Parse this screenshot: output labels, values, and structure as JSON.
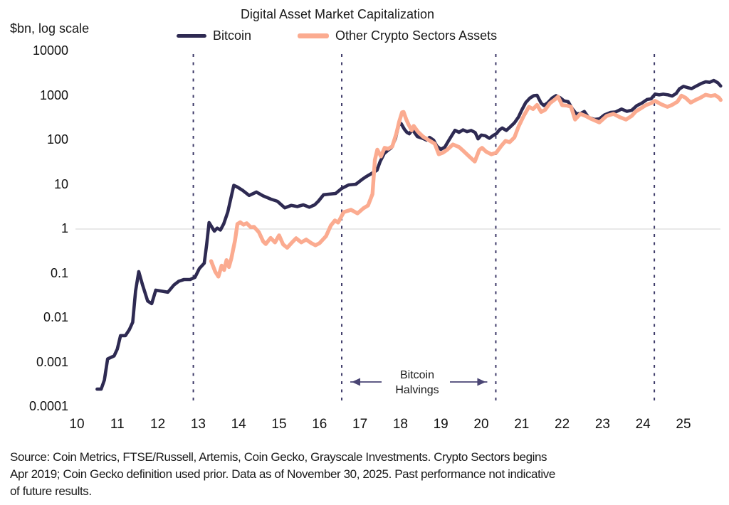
{
  "title": "Digital Asset Market Capitalization",
  "y_axis_unit": "$bn, log scale",
  "legend": [
    {
      "label": "Bitcoin",
      "color": "#2e2a52"
    },
    {
      "label": "Other Crypto Sectors Assets",
      "color": "#fbab90"
    }
  ],
  "annotation": {
    "line1": "Bitcoin",
    "line2": "Halvings"
  },
  "source": {
    "lines": [
      "Source: Coin Metrics, FTSE/Russell, Artemis, Coin Gecko, Grayscale Investments. Crypto Sectors begins",
      "Apr 2019; Coin Gecko definition used prior. Data as of November 30, 2025. Past performance not indicative",
      "of future results."
    ]
  },
  "colors": {
    "bitcoin_line": "#2e2a52",
    "other_crypto_line": "#fbab90",
    "halving_dashed_line": "#3d3a68",
    "arrow": "#4a4574",
    "gridline": "#d9d9d9",
    "text": "#1a1a1a"
  },
  "chart_data": {
    "type": "line",
    "title": "Digital Asset Market Capitalization",
    "xlabel": "",
    "ylabel": "$bn, log scale",
    "yscale": "log",
    "ylim": [
      0.0001,
      10000
    ],
    "xlim": [
      2010,
      2026
    ],
    "grid": "horizontal line at y=1 only",
    "legend_position": "top",
    "yticks": [
      10000,
      1000,
      100,
      10,
      1,
      0.1,
      0.01,
      0.001,
      0.0001
    ],
    "ytick_labels": [
      "10000",
      "1000",
      "100",
      "10",
      "1",
      "0.1",
      "0.01",
      "0.001",
      "0.0001"
    ],
    "xticks": [
      2010,
      2011,
      2012,
      2013,
      2014,
      2015,
      2016,
      2017,
      2018,
      2019,
      2020,
      2021,
      2022,
      2023,
      2024,
      2025
    ],
    "xtick_labels": [
      "10",
      "11",
      "12",
      "13",
      "14",
      "15",
      "16",
      "17",
      "18",
      "19",
      "20",
      "21",
      "22",
      "23",
      "24",
      "25"
    ],
    "halving_years": [
      2012.88,
      2016.55,
      2020.36,
      2024.28
    ],
    "grid_y_values": [
      1
    ],
    "series": [
      {
        "name": "Bitcoin",
        "color": "#2e2a52",
        "points": [
          [
            2010.5,
            0.00025
          ],
          [
            2010.6,
            0.00025
          ],
          [
            2010.68,
            0.0004
          ],
          [
            2010.76,
            0.0012
          ],
          [
            2010.92,
            0.0014
          ],
          [
            2011.0,
            0.002
          ],
          [
            2011.08,
            0.004
          ],
          [
            2011.2,
            0.004
          ],
          [
            2011.3,
            0.0055
          ],
          [
            2011.38,
            0.008
          ],
          [
            2011.45,
            0.04
          ],
          [
            2011.53,
            0.11
          ],
          [
            2011.62,
            0.057
          ],
          [
            2011.75,
            0.024
          ],
          [
            2011.85,
            0.021
          ],
          [
            2011.95,
            0.042
          ],
          [
            2012.1,
            0.04
          ],
          [
            2012.25,
            0.038
          ],
          [
            2012.4,
            0.055
          ],
          [
            2012.52,
            0.067
          ],
          [
            2012.65,
            0.073
          ],
          [
            2012.8,
            0.073
          ],
          [
            2012.92,
            0.082
          ],
          [
            2013.03,
            0.13
          ],
          [
            2013.15,
            0.17
          ],
          [
            2013.21,
            0.45
          ],
          [
            2013.27,
            1.4
          ],
          [
            2013.4,
            0.9
          ],
          [
            2013.47,
            1.05
          ],
          [
            2013.55,
            0.95
          ],
          [
            2013.63,
            1.3
          ],
          [
            2013.73,
            2.4
          ],
          [
            2013.88,
            9.6
          ],
          [
            2013.97,
            8.8
          ],
          [
            2014.1,
            7.4
          ],
          [
            2014.26,
            5.7
          ],
          [
            2014.44,
            6.8
          ],
          [
            2014.6,
            5.6
          ],
          [
            2014.8,
            4.7
          ],
          [
            2014.96,
            4.2
          ],
          [
            2015.14,
            3.0
          ],
          [
            2015.3,
            3.4
          ],
          [
            2015.45,
            3.2
          ],
          [
            2015.6,
            3.5
          ],
          [
            2015.75,
            3.1
          ],
          [
            2015.88,
            3.5
          ],
          [
            2015.97,
            4.2
          ],
          [
            2016.1,
            5.9
          ],
          [
            2016.25,
            6.1
          ],
          [
            2016.4,
            6.3
          ],
          [
            2016.55,
            8.2
          ],
          [
            2016.72,
            9.8
          ],
          [
            2016.9,
            10.2
          ],
          [
            2017.05,
            13
          ],
          [
            2017.15,
            15
          ],
          [
            2017.3,
            18
          ],
          [
            2017.42,
            21
          ],
          [
            2017.5,
            33
          ],
          [
            2017.6,
            50
          ],
          [
            2017.7,
            60
          ],
          [
            2017.78,
            68
          ],
          [
            2017.88,
            110
          ],
          [
            2017.96,
            220
          ],
          [
            2018.02,
            235
          ],
          [
            2018.1,
            175
          ],
          [
            2018.16,
            150
          ],
          [
            2018.22,
            139
          ],
          [
            2018.3,
            172
          ],
          [
            2018.42,
            120
          ],
          [
            2018.55,
            110
          ],
          [
            2018.65,
            100
          ],
          [
            2018.72,
            115
          ],
          [
            2018.82,
            100
          ],
          [
            2018.9,
            74
          ],
          [
            2019.0,
            62
          ],
          [
            2019.1,
            70
          ],
          [
            2019.2,
            100
          ],
          [
            2019.35,
            166
          ],
          [
            2019.45,
            150
          ],
          [
            2019.55,
            170
          ],
          [
            2019.65,
            155
          ],
          [
            2019.75,
            165
          ],
          [
            2019.85,
            148
          ],
          [
            2019.92,
            107
          ],
          [
            2020.0,
            130
          ],
          [
            2020.1,
            125
          ],
          [
            2020.2,
            110
          ],
          [
            2020.3,
            128
          ],
          [
            2020.37,
            139
          ],
          [
            2020.45,
            170
          ],
          [
            2020.52,
            187
          ],
          [
            2020.62,
            165
          ],
          [
            2020.72,
            200
          ],
          [
            2020.82,
            245
          ],
          [
            2020.92,
            330
          ],
          [
            2021.0,
            470
          ],
          [
            2021.1,
            700
          ],
          [
            2021.2,
            880
          ],
          [
            2021.3,
            1000
          ],
          [
            2021.38,
            1020
          ],
          [
            2021.48,
            680
          ],
          [
            2021.55,
            600
          ],
          [
            2021.65,
            700
          ],
          [
            2021.75,
            880
          ],
          [
            2021.85,
            1000
          ],
          [
            2021.95,
            900
          ],
          [
            2022.05,
            760
          ],
          [
            2022.15,
            730
          ],
          [
            2022.25,
            510
          ],
          [
            2022.35,
            390
          ],
          [
            2022.45,
            395
          ],
          [
            2022.55,
            440
          ],
          [
            2022.65,
            325
          ],
          [
            2022.8,
            292
          ],
          [
            2022.92,
            300
          ],
          [
            2023.05,
            370
          ],
          [
            2023.2,
            420
          ],
          [
            2023.32,
            430
          ],
          [
            2023.47,
            500
          ],
          [
            2023.6,
            445
          ],
          [
            2023.72,
            470
          ],
          [
            2023.85,
            600
          ],
          [
            2023.97,
            680
          ],
          [
            2024.1,
            820
          ],
          [
            2024.2,
            850
          ],
          [
            2024.3,
            1090
          ],
          [
            2024.4,
            1040
          ],
          [
            2024.5,
            1080
          ],
          [
            2024.62,
            1040
          ],
          [
            2024.72,
            980
          ],
          [
            2024.82,
            1120
          ],
          [
            2024.9,
            1420
          ],
          [
            2025.0,
            1620
          ],
          [
            2025.1,
            1520
          ],
          [
            2025.2,
            1440
          ],
          [
            2025.32,
            1650
          ],
          [
            2025.45,
            1900
          ],
          [
            2025.55,
            2050
          ],
          [
            2025.65,
            2000
          ],
          [
            2025.75,
            2200
          ],
          [
            2025.85,
            1950
          ],
          [
            2025.92,
            1650
          ]
        ]
      },
      {
        "name": "Other Crypto Sectors Assets",
        "color": "#fbab90",
        "points": [
          [
            2013.32,
            0.19
          ],
          [
            2013.42,
            0.11
          ],
          [
            2013.5,
            0.085
          ],
          [
            2013.58,
            0.15
          ],
          [
            2013.64,
            0.12
          ],
          [
            2013.7,
            0.2
          ],
          [
            2013.76,
            0.14
          ],
          [
            2013.82,
            0.22
          ],
          [
            2013.91,
            0.55
          ],
          [
            2013.97,
            1.3
          ],
          [
            2014.04,
            1.42
          ],
          [
            2014.12,
            1.25
          ],
          [
            2014.2,
            1.35
          ],
          [
            2014.3,
            1.1
          ],
          [
            2014.38,
            1.12
          ],
          [
            2014.5,
            0.85
          ],
          [
            2014.61,
            0.52
          ],
          [
            2014.67,
            0.46
          ],
          [
            2014.79,
            0.63
          ],
          [
            2014.9,
            0.5
          ],
          [
            2015.0,
            0.72
          ],
          [
            2015.1,
            0.45
          ],
          [
            2015.2,
            0.38
          ],
          [
            2015.32,
            0.5
          ],
          [
            2015.42,
            0.62
          ],
          [
            2015.55,
            0.5
          ],
          [
            2015.67,
            0.58
          ],
          [
            2015.8,
            0.48
          ],
          [
            2015.9,
            0.43
          ],
          [
            2016.0,
            0.48
          ],
          [
            2016.16,
            0.69
          ],
          [
            2016.28,
            1.2
          ],
          [
            2016.38,
            1.56
          ],
          [
            2016.46,
            1.4
          ],
          [
            2016.6,
            2.4
          ],
          [
            2016.78,
            2.7
          ],
          [
            2016.94,
            2.25
          ],
          [
            2017.08,
            2.9
          ],
          [
            2017.2,
            3.4
          ],
          [
            2017.31,
            6.1
          ],
          [
            2017.37,
            36
          ],
          [
            2017.43,
            61
          ],
          [
            2017.52,
            43
          ],
          [
            2017.61,
            67
          ],
          [
            2017.7,
            64
          ],
          [
            2017.8,
            72
          ],
          [
            2017.9,
            140
          ],
          [
            2017.97,
            260
          ],
          [
            2018.04,
            420
          ],
          [
            2018.08,
            430
          ],
          [
            2018.14,
            300
          ],
          [
            2018.2,
            225
          ],
          [
            2018.28,
            166
          ],
          [
            2018.33,
            208
          ],
          [
            2018.43,
            156
          ],
          [
            2018.56,
            120
          ],
          [
            2018.7,
            100
          ],
          [
            2018.85,
            83
          ],
          [
            2018.95,
            48
          ],
          [
            2019.05,
            52
          ],
          [
            2019.15,
            60
          ],
          [
            2019.3,
            80
          ],
          [
            2019.45,
            70
          ],
          [
            2019.55,
            58
          ],
          [
            2019.7,
            43
          ],
          [
            2019.84,
            33
          ],
          [
            2019.95,
            60
          ],
          [
            2020.02,
            67
          ],
          [
            2020.12,
            55
          ],
          [
            2020.25,
            48
          ],
          [
            2020.37,
            52
          ],
          [
            2020.5,
            75
          ],
          [
            2020.6,
            96
          ],
          [
            2020.7,
            90
          ],
          [
            2020.82,
            115
          ],
          [
            2020.92,
            200
          ],
          [
            2021.05,
            350
          ],
          [
            2021.18,
            560
          ],
          [
            2021.28,
            500
          ],
          [
            2021.38,
            620
          ],
          [
            2021.48,
            430
          ],
          [
            2021.58,
            480
          ],
          [
            2021.7,
            680
          ],
          [
            2021.82,
            820
          ],
          [
            2021.9,
            950
          ],
          [
            2022.0,
            610
          ],
          [
            2022.12,
            600
          ],
          [
            2022.22,
            560
          ],
          [
            2022.32,
            290
          ],
          [
            2022.45,
            390
          ],
          [
            2022.58,
            350
          ],
          [
            2022.72,
            300
          ],
          [
            2022.92,
            250
          ],
          [
            2023.1,
            350
          ],
          [
            2023.27,
            390
          ],
          [
            2023.42,
            330
          ],
          [
            2023.58,
            290
          ],
          [
            2023.72,
            350
          ],
          [
            2023.82,
            440
          ],
          [
            2023.95,
            520
          ],
          [
            2024.07,
            610
          ],
          [
            2024.2,
            680
          ],
          [
            2024.3,
            760
          ],
          [
            2024.45,
            640
          ],
          [
            2024.6,
            560
          ],
          [
            2024.72,
            620
          ],
          [
            2024.85,
            730
          ],
          [
            2024.95,
            1000
          ],
          [
            2025.05,
            900
          ],
          [
            2025.18,
            700
          ],
          [
            2025.3,
            800
          ],
          [
            2025.42,
            900
          ],
          [
            2025.55,
            1050
          ],
          [
            2025.68,
            980
          ],
          [
            2025.78,
            1030
          ],
          [
            2025.88,
            900
          ],
          [
            2025.92,
            800
          ]
        ]
      }
    ]
  }
}
